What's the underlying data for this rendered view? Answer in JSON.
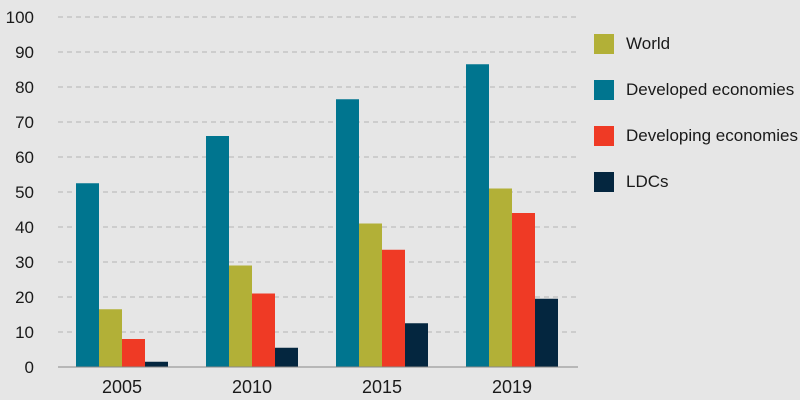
{
  "chart_data": {
    "type": "bar",
    "title": "",
    "xlabel": "",
    "ylabel": "",
    "categories": [
      "2005",
      "2010",
      "2015",
      "2019"
    ],
    "series": [
      {
        "name": "Developed economies",
        "color": "#00758f",
        "values": [
          52.5,
          66,
          76.5,
          86.5
        ]
      },
      {
        "name": "World",
        "color": "#b2b037",
        "values": [
          16.5,
          29,
          41,
          51
        ]
      },
      {
        "name": "Developing economies",
        "color": "#ef3a25",
        "values": [
          8,
          21,
          33.5,
          44
        ]
      },
      {
        "name": "LDCs",
        "color": "#04263f",
        "values": [
          1.5,
          5.5,
          12.5,
          19.5
        ]
      }
    ],
    "legend_order": [
      "World",
      "Developed economies",
      "Developing economies",
      "LDCs"
    ],
    "ylim": [
      0,
      100
    ],
    "yticks": [
      0,
      10,
      20,
      30,
      40,
      50,
      60,
      70,
      80,
      90,
      100
    ],
    "grid": "horizontal-dashed",
    "legend_position": "right"
  }
}
